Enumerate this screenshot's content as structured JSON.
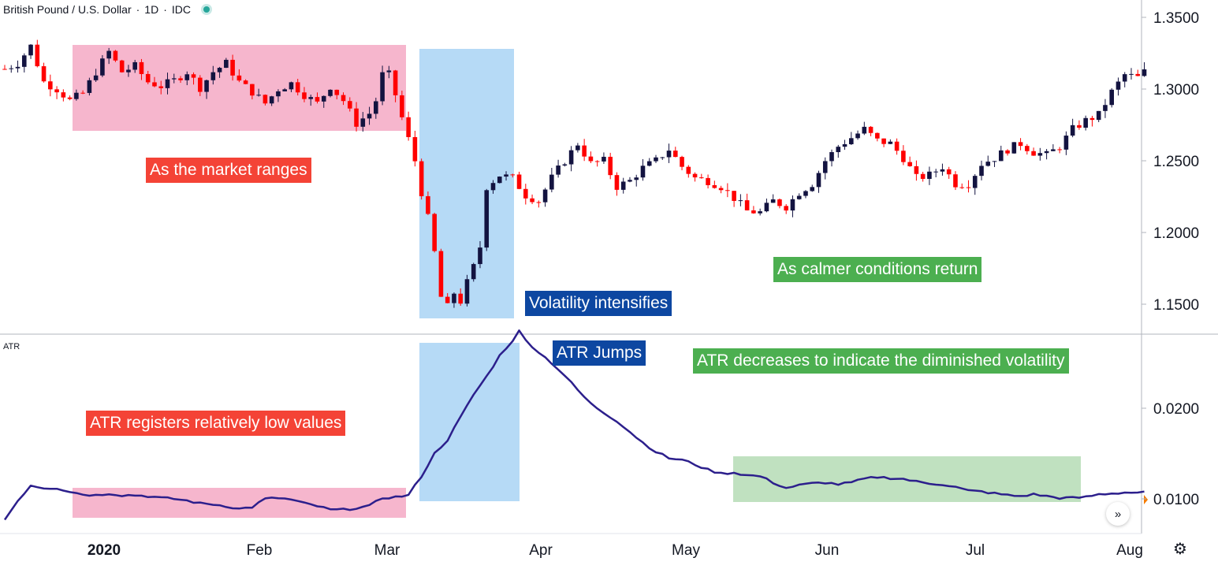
{
  "header": {
    "symbol": "British Pound / U.S. Dollar",
    "separator": "/",
    "interval": "1D",
    "exchange": "IDC",
    "status_color": "#26a69a"
  },
  "indicator": {
    "label": "ATR"
  },
  "annotations": {
    "range": "As the market ranges",
    "vol": "Volatility intensifies",
    "calm": "As calmer conditions return",
    "atr_low": "ATR registers relatively low values",
    "atr_jump": "ATR Jumps",
    "atr_dec": "ATR decreases to indicate the diminished volatility"
  },
  "colors": {
    "up": "#131340",
    "down": "#ff0000",
    "atr_line": "#2c1f8c",
    "pink_box": "#f5a9c4",
    "blue_box": "#a9d3f5",
    "green_box": "#b5dcb5",
    "last_marker": "#f57c00"
  },
  "icons": {
    "scroll": "double-chevron-right-icon",
    "settings": "gear-icon"
  },
  "chart_data": [
    {
      "type": "candlestick",
      "title": "British Pound / U.S. Dollar · 1D · IDC",
      "ylim": [
        1.13,
        1.36
      ],
      "y_ticks": [
        "1.3500",
        "1.3000",
        "1.2500",
        "1.2000",
        "1.1500"
      ],
      "x_ticks": [
        "2020",
        "Feb",
        "Mar",
        "Apr",
        "May",
        "Jun",
        "Jul",
        "Aug"
      ],
      "keypoints": [
        [
          0,
          1.314
        ],
        [
          2,
          1.318
        ],
        [
          4,
          1.33
        ],
        [
          6,
          1.305
        ],
        [
          8,
          1.3
        ],
        [
          10,
          1.292
        ],
        [
          12,
          1.297
        ],
        [
          14,
          1.312
        ],
        [
          16,
          1.326
        ],
        [
          18,
          1.312
        ],
        [
          20,
          1.316
        ],
        [
          22,
          1.305
        ],
        [
          24,
          1.302
        ],
        [
          26,
          1.306
        ],
        [
          28,
          1.312
        ],
        [
          30,
          1.301
        ],
        [
          32,
          1.312
        ],
        [
          34,
          1.318
        ],
        [
          36,
          1.305
        ],
        [
          38,
          1.298
        ],
        [
          40,
          1.29
        ],
        [
          42,
          1.3
        ],
        [
          44,
          1.304
        ],
        [
          46,
          1.296
        ],
        [
          48,
          1.29
        ],
        [
          50,
          1.302
        ],
        [
          52,
          1.292
        ],
        [
          54,
          1.276
        ],
        [
          56,
          1.283
        ],
        [
          57,
          1.292
        ],
        [
          58,
          1.31
        ],
        [
          59,
          1.31
        ],
        [
          60,
          1.296
        ],
        [
          61,
          1.28
        ],
        [
          62,
          1.265
        ],
        [
          63,
          1.25
        ],
        [
          64,
          1.228
        ],
        [
          65,
          1.21
        ],
        [
          66,
          1.186
        ],
        [
          67,
          1.155
        ],
        [
          68,
          1.148
        ],
        [
          69,
          1.158
        ],
        [
          70,
          1.152
        ],
        [
          71,
          1.165
        ],
        [
          72,
          1.176
        ],
        [
          73,
          1.19
        ],
        [
          74,
          1.232
        ],
        [
          76,
          1.24
        ],
        [
          78,
          1.238
        ],
        [
          80,
          1.226
        ],
        [
          82,
          1.222
        ],
        [
          84,
          1.238
        ],
        [
          86,
          1.25
        ],
        [
          88,
          1.262
        ],
        [
          90,
          1.248
        ],
        [
          92,
          1.25
        ],
        [
          94,
          1.232
        ],
        [
          96,
          1.236
        ],
        [
          98,
          1.245
        ],
        [
          100,
          1.25
        ],
        [
          102,
          1.258
        ],
        [
          104,
          1.246
        ],
        [
          106,
          1.238
        ],
        [
          108,
          1.236
        ],
        [
          110,
          1.232
        ],
        [
          112,
          1.224
        ],
        [
          114,
          1.215
        ],
        [
          116,
          1.214
        ],
        [
          118,
          1.222
        ],
        [
          120,
          1.218
        ],
        [
          122,
          1.228
        ],
        [
          124,
          1.234
        ],
        [
          126,
          1.25
        ],
        [
          128,
          1.26
        ],
        [
          130,
          1.266
        ],
        [
          132,
          1.272
        ],
        [
          134,
          1.264
        ],
        [
          136,
          1.262
        ],
        [
          138,
          1.252
        ],
        [
          140,
          1.238
        ],
        [
          142,
          1.24
        ],
        [
          144,
          1.246
        ],
        [
          146,
          1.234
        ],
        [
          148,
          1.234
        ],
        [
          150,
          1.248
        ],
        [
          152,
          1.252
        ],
        [
          154,
          1.258
        ],
        [
          156,
          1.262
        ],
        [
          158,
          1.256
        ],
        [
          160,
          1.254
        ],
        [
          162,
          1.26
        ],
        [
          164,
          1.272
        ],
        [
          166,
          1.278
        ],
        [
          168,
          1.282
        ],
        [
          170,
          1.298
        ],
        [
          172,
          1.31
        ],
        [
          174,
          1.308
        ],
        [
          175,
          1.312
        ]
      ]
    },
    {
      "type": "line",
      "title": "ATR",
      "ylim": [
        0.0055,
        0.0315
      ],
      "y_ticks": [
        "0.0200",
        "0.0100"
      ],
      "keypoints": [
        [
          0,
          0.0077
        ],
        [
          2,
          0.0098
        ],
        [
          4,
          0.0115
        ],
        [
          6,
          0.0112
        ],
        [
          8,
          0.0112
        ],
        [
          10,
          0.0108
        ],
        [
          12,
          0.0105
        ],
        [
          14,
          0.0104
        ],
        [
          16,
          0.0106
        ],
        [
          18,
          0.0104
        ],
        [
          20,
          0.0104
        ],
        [
          22,
          0.0103
        ],
        [
          24,
          0.0101
        ],
        [
          26,
          0.01
        ],
        [
          28,
          0.0098
        ],
        [
          30,
          0.0095
        ],
        [
          32,
          0.0094
        ],
        [
          34,
          0.0092
        ],
        [
          36,
          0.0089
        ],
        [
          38,
          0.0091
        ],
        [
          40,
          0.01
        ],
        [
          42,
          0.0101
        ],
        [
          44,
          0.0099
        ],
        [
          46,
          0.0095
        ],
        [
          48,
          0.0092
        ],
        [
          50,
          0.0088
        ],
        [
          52,
          0.0088
        ],
        [
          54,
          0.009
        ],
        [
          56,
          0.0092
        ],
        [
          58,
          0.0101
        ],
        [
          60,
          0.0102
        ],
        [
          62,
          0.0104
        ],
        [
          64,
          0.0125
        ],
        [
          66,
          0.015
        ],
        [
          68,
          0.0165
        ],
        [
          70,
          0.019
        ],
        [
          72,
          0.0215
        ],
        [
          74,
          0.0235
        ],
        [
          76,
          0.0258
        ],
        [
          78,
          0.0275
        ],
        [
          79,
          0.0285
        ],
        [
          80,
          0.0275
        ],
        [
          82,
          0.0262
        ],
        [
          84,
          0.025
        ],
        [
          86,
          0.0236
        ],
        [
          88,
          0.022
        ],
        [
          90,
          0.0205
        ],
        [
          92,
          0.0195
        ],
        [
          94,
          0.0186
        ],
        [
          96,
          0.0174
        ],
        [
          98,
          0.0162
        ],
        [
          100,
          0.0152
        ],
        [
          102,
          0.0145
        ],
        [
          104,
          0.0143
        ],
        [
          106,
          0.0138
        ],
        [
          108,
          0.0132
        ],
        [
          110,
          0.0128
        ],
        [
          112,
          0.0129
        ],
        [
          114,
          0.0126
        ],
        [
          116,
          0.0125
        ],
        [
          118,
          0.0118
        ],
        [
          120,
          0.0112
        ],
        [
          122,
          0.0115
        ],
        [
          124,
          0.0117
        ],
        [
          126,
          0.0118
        ],
        [
          128,
          0.0116
        ],
        [
          130,
          0.0118
        ],
        [
          132,
          0.0122
        ],
        [
          134,
          0.0124
        ],
        [
          136,
          0.0123
        ],
        [
          138,
          0.0122
        ],
        [
          140,
          0.0119
        ],
        [
          142,
          0.0117
        ],
        [
          144,
          0.0116
        ],
        [
          146,
          0.0113
        ],
        [
          148,
          0.0109
        ],
        [
          150,
          0.0108
        ],
        [
          152,
          0.0106
        ],
        [
          154,
          0.0104
        ],
        [
          156,
          0.0103
        ],
        [
          158,
          0.0105
        ],
        [
          160,
          0.0103
        ],
        [
          162,
          0.0101
        ],
        [
          164,
          0.0101
        ],
        [
          166,
          0.0102
        ],
        [
          168,
          0.0105
        ],
        [
          170,
          0.0106
        ],
        [
          172,
          0.0107
        ],
        [
          175,
          0.0107
        ]
      ]
    }
  ]
}
